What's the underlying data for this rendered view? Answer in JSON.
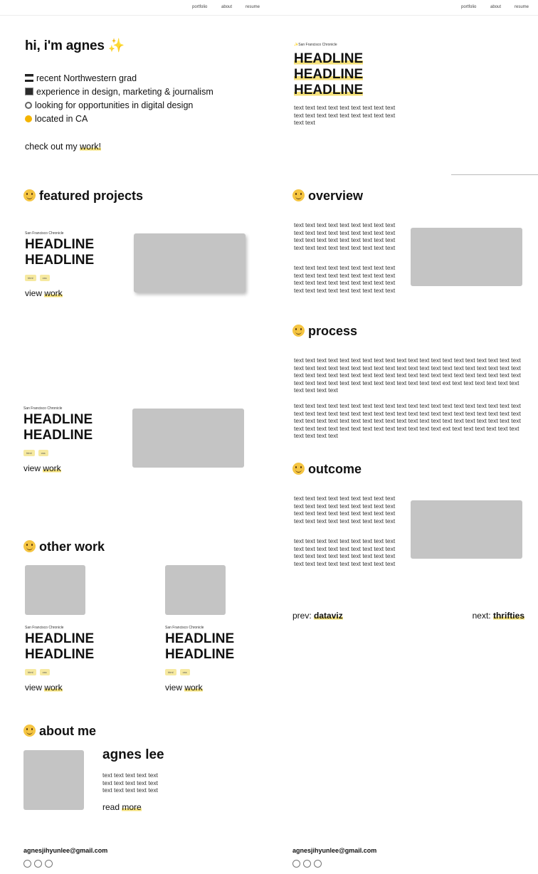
{
  "nav": {
    "portfolio": "portfolio",
    "about": "about",
    "resume": "resume"
  },
  "intro": {
    "greeting": "hi, i'm agnes",
    "line1": "recent Northwestern grad",
    "line2": "experience in design, marketing & journalism",
    "line3": "looking for opportunities in digital design",
    "line4": "located in CA",
    "cta_prefix": "check out my ",
    "cta_link": "work!"
  },
  "featured": {
    "title": "featured projects",
    "projects": [
      {
        "source": "San Francisco Chronicle",
        "headline1": "HEADLINE",
        "headline2": "HEADLINE",
        "tag1": "html",
        "tag2": "css",
        "link_prefix": "view ",
        "link": "work"
      },
      {
        "source": "San Francisco Chronicle",
        "headline1": "HEADLINE",
        "headline2": "HEADLINE",
        "tag1": "html",
        "tag2": "css",
        "link_prefix": "view ",
        "link": "work"
      }
    ]
  },
  "other": {
    "title": "other work",
    "projects": [
      {
        "source": "San Francisco Chronicle",
        "headline1": "HEADLINE",
        "headline2": "HEADLINE",
        "tag1": "html",
        "tag2": "css",
        "link_prefix": "view ",
        "link": "work"
      },
      {
        "source": "San Francisco Chronicle",
        "headline1": "HEADLINE",
        "headline2": "HEADLINE",
        "tag1": "html",
        "tag2": "css",
        "link_prefix": "view ",
        "link": "work"
      }
    ]
  },
  "about": {
    "title": "about me",
    "name": "agnes lee",
    "bio": "text text text text text text text text text text text text text text text",
    "link_prefix": "read ",
    "link": "more"
  },
  "footer": {
    "email": "agnesjihyunlee@gmail.com"
  },
  "article": {
    "source": "San Francisco Chronicle",
    "headline1": "HEADLINE",
    "headline2": "HEADLINE",
    "headline3": "HEADLINE",
    "dek": "text text text text text text text text text text text text text text text text text text text text",
    "overview_title": "overview",
    "overview_p1": "text text text text text text text text text text text text text text text text text text text text text text text text text text text text text text text text text text text text",
    "overview_p2": "text text text text text text text text text text text text text text text text text text text text text text text text text text text text text text text text text text text text",
    "process_title": "process",
    "process_p1": "text text text text text text text text text text text text text text text text text text text text text text text text text text text text text text text text text text text text text text text text text text text text text text text text text text text text text text text text text text text text text text text text text text text text text text text text text ext text text text text text text text text text text",
    "process_p2": "text text text text text text text text text text text text text text text text text text text text text text text text text text text text text text text text text text text text text text text text text text text text text text text text text text text text text text text text text text text text text text text text text text text text text text text text text ext text text text text text text text text text text",
    "outcome_title": "outcome",
    "outcome_p1": "text text text text text text text text text text text text text text text text text text text text text text text text text text text text text text text text text text text text",
    "outcome_p2": "text text text text text text text text text text text text text text text text text text text text text text text text text text text text text text text text text text text text",
    "prev_label": "prev: ",
    "prev_link": "dataviz",
    "next_label": "next: ",
    "next_link": "thrifties"
  }
}
